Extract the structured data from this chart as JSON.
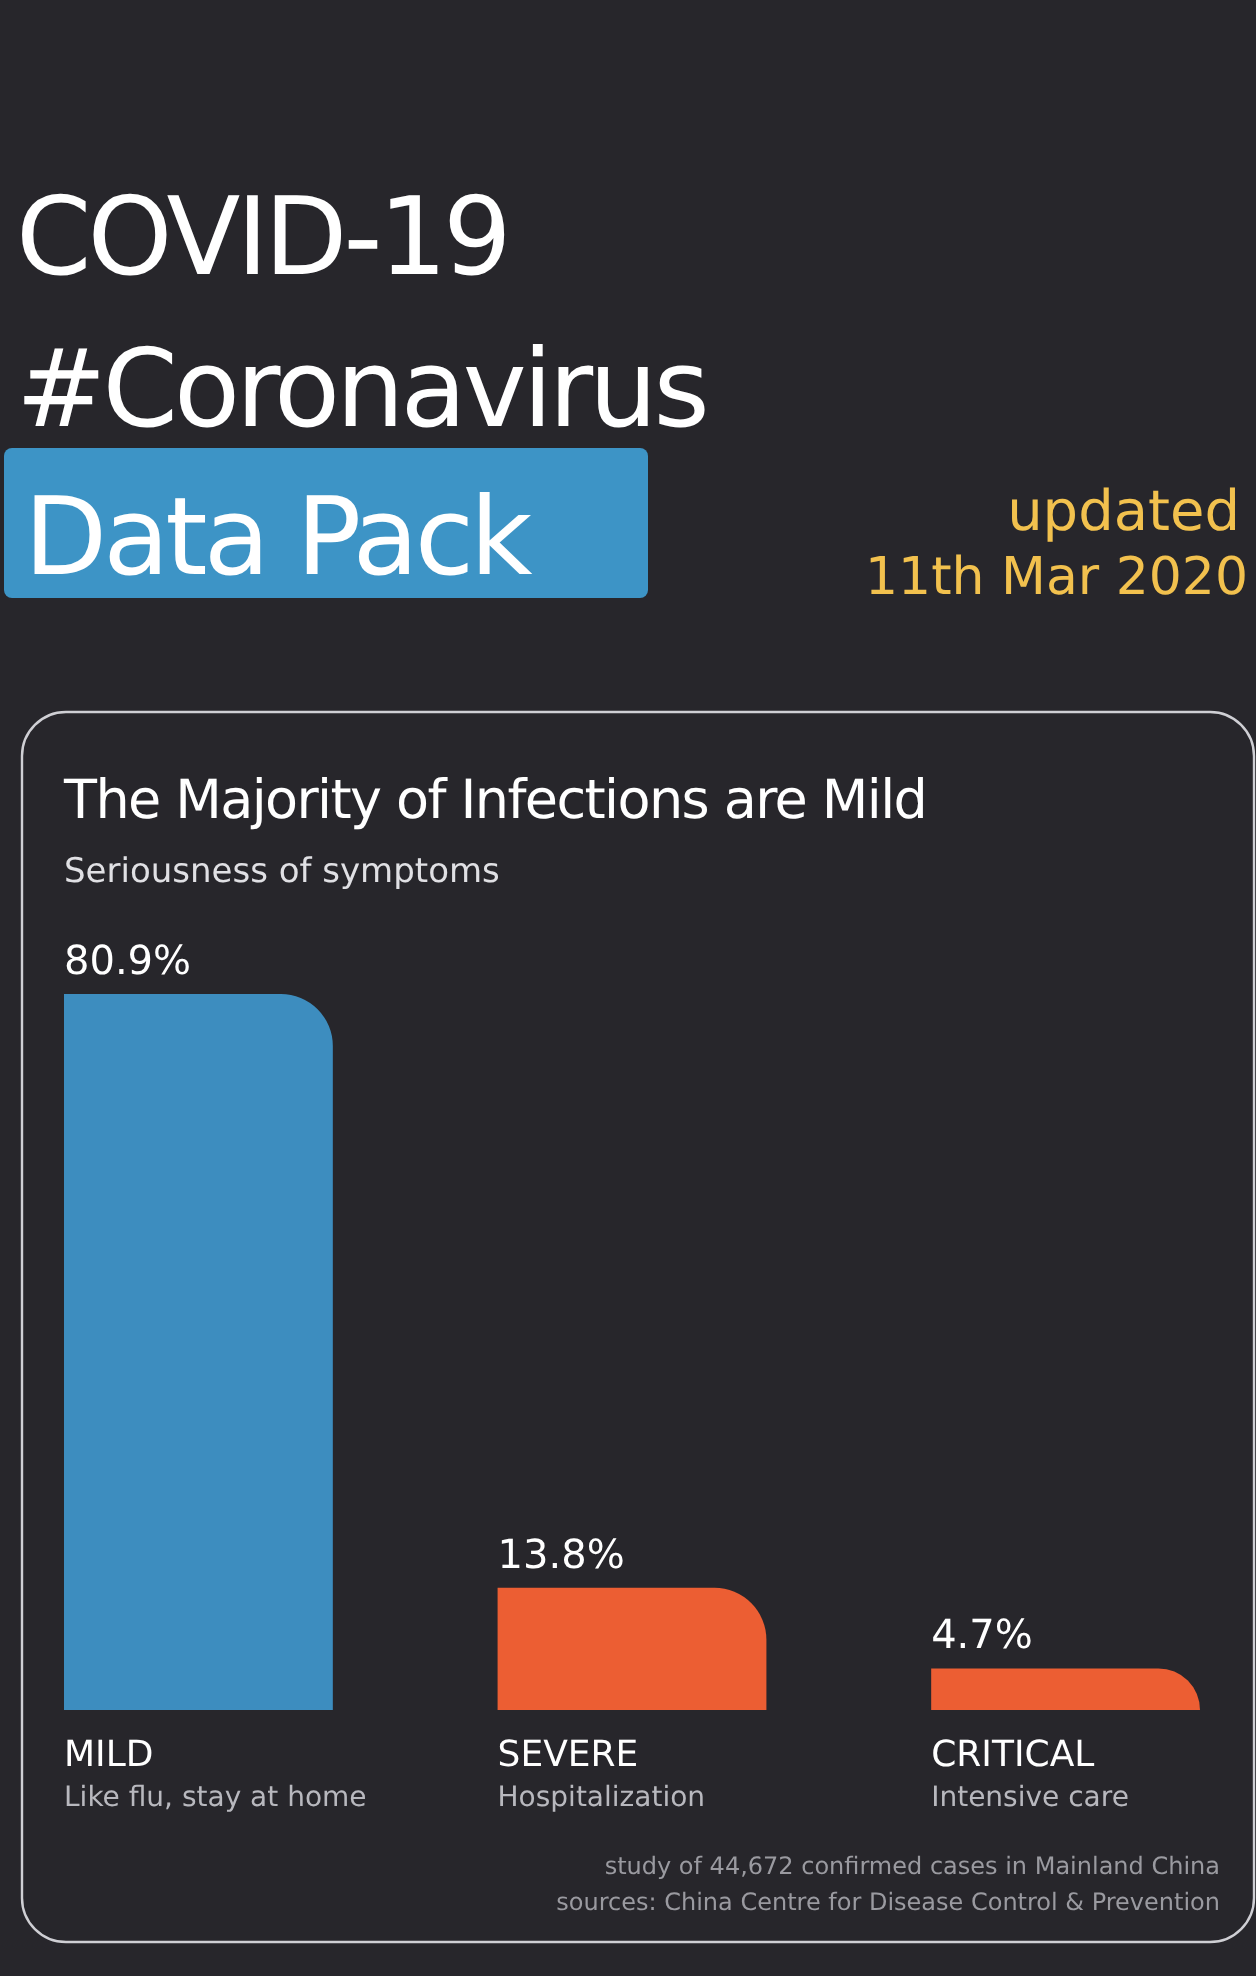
{
  "chart_data": {
    "type": "bar",
    "title": "The Majority of Infections are Mild",
    "subtitle": "Seriousness of symptoms",
    "categories": [
      "MILD",
      "SEVERE",
      "CRITICAL"
    ],
    "values": [
      80.9,
      13.8,
      4.7
    ],
    "colors": [
      "#3d8dbf",
      "#ec5e33",
      "#ec5e33"
    ],
    "value_labels": [
      "80.9%",
      "13.8%",
      "4.7%"
    ],
    "annotations": [
      "COVID-19",
      "#Coronavirus",
      "Data Pack",
      "updated",
      "11th Mar 2020",
      "Like flu, stay at home",
      "Hospitalization",
      "Intensive care",
      "study of 44,672 confirmed cases in Mainland China",
      "sources: China Centre for Disease Control & Prevention"
    ]
  }
}
